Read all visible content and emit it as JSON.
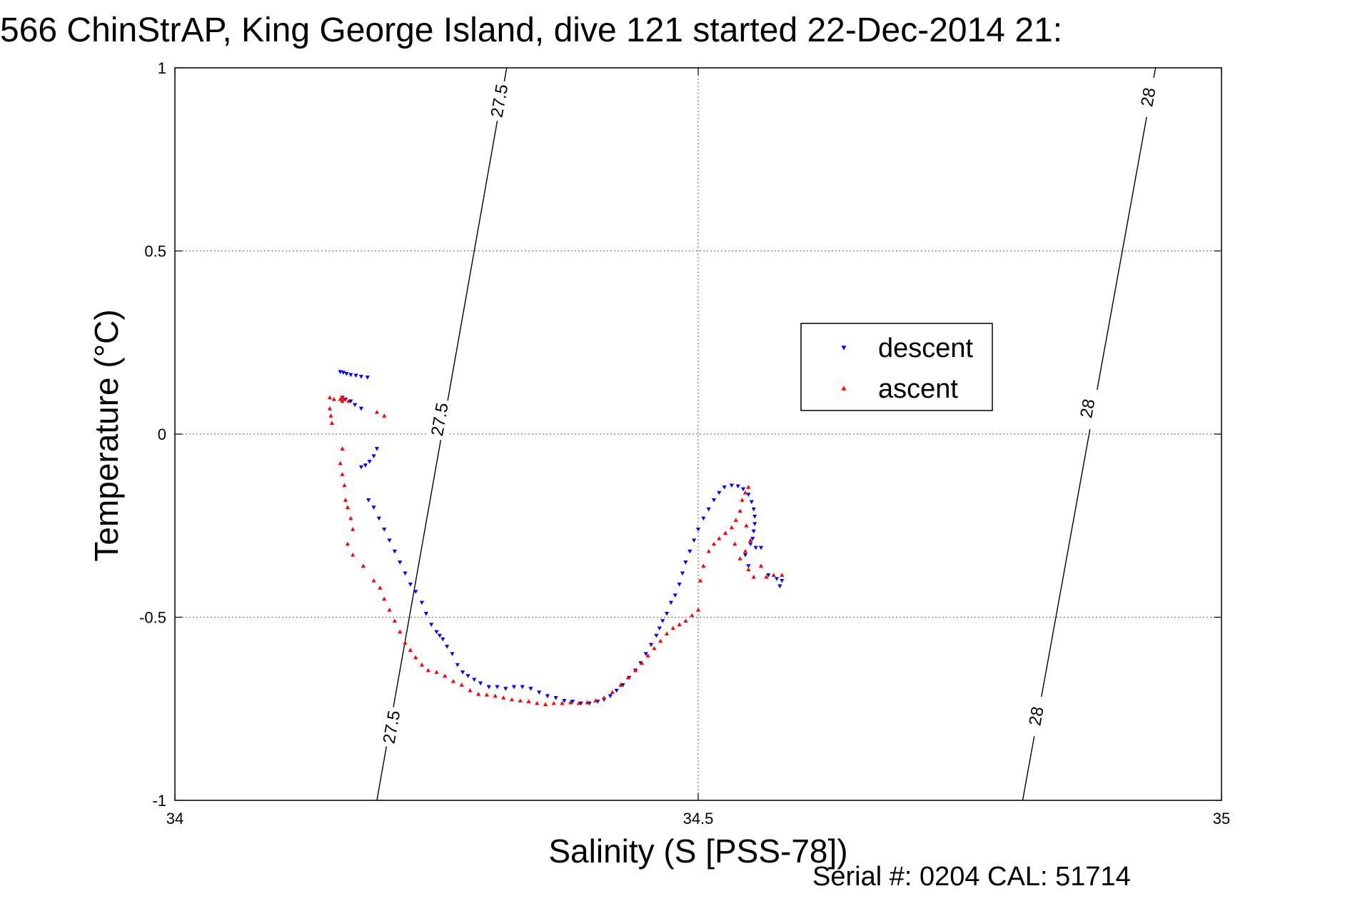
{
  "chart_data": {
    "type": "scatter",
    "title": "566 ChinStrAP, King George Island, dive 121 started 22-Dec-2014 21:",
    "xlabel": "Salinity (S [PSS-78])",
    "ylabel": "Temperature (°C)",
    "xlim": [
      34,
      35
    ],
    "ylim": [
      -1,
      1
    ],
    "x_ticks": [
      34,
      34.5,
      35
    ],
    "x_tick_labels": [
      "34",
      "34.5",
      "35"
    ],
    "y_ticks": [
      -1,
      -0.5,
      0,
      0.5,
      1
    ],
    "y_tick_labels": [
      "-1",
      "-0.5",
      "0",
      "0.5",
      "1"
    ],
    "grid": true,
    "legend_position": "upper-right",
    "footer": "Serial #: 0204  CAL: 51714",
    "isopycnals": [
      {
        "label": "27.5",
        "color": "#000000",
        "x": [
          34.193,
          34.317
        ],
        "y": [
          -1,
          1
        ],
        "label_points": [
          [
            34.207,
            -0.8
          ],
          [
            34.253,
            0.04
          ],
          [
            34.31,
            0.91
          ]
        ]
      },
      {
        "label": "28",
        "color": "#000000",
        "x": [
          34.81,
          34.937
        ],
        "y": [
          -1,
          1
        ],
        "label_points": [
          [
            34.823,
            -0.77
          ],
          [
            34.872,
            0.07
          ],
          [
            34.93,
            0.92
          ]
        ]
      }
    ],
    "series": [
      {
        "name": "descent",
        "marker": "triangle-down",
        "color": "#0000ff",
        "points": [
          [
            34.158,
            0.17
          ],
          [
            34.161,
            0.168
          ],
          [
            34.164,
            0.165
          ],
          [
            34.168,
            0.162
          ],
          [
            34.173,
            0.16
          ],
          [
            34.178,
            0.157
          ],
          [
            34.184,
            0.155
          ],
          [
            34.16,
            0.1
          ],
          [
            34.163,
            0.095
          ],
          [
            34.168,
            0.09
          ],
          [
            34.172,
            0.08
          ],
          [
            34.178,
            0.07
          ],
          [
            34.193,
            -0.04
          ],
          [
            34.19,
            -0.06
          ],
          [
            34.186,
            -0.075
          ],
          [
            34.182,
            -0.085
          ],
          [
            34.178,
            -0.09
          ],
          [
            34.185,
            -0.18
          ],
          [
            34.19,
            -0.2
          ],
          [
            34.195,
            -0.23
          ],
          [
            34.2,
            -0.26
          ],
          [
            34.205,
            -0.29
          ],
          [
            34.21,
            -0.32
          ],
          [
            34.215,
            -0.35
          ],
          [
            34.22,
            -0.38
          ],
          [
            34.225,
            -0.41
          ],
          [
            34.23,
            -0.43
          ],
          [
            34.236,
            -0.46
          ],
          [
            34.24,
            -0.49
          ],
          [
            34.245,
            -0.52
          ],
          [
            34.25,
            -0.54
          ],
          [
            34.253,
            -0.55
          ],
          [
            34.256,
            -0.56
          ],
          [
            34.26,
            -0.58
          ],
          [
            34.265,
            -0.6
          ],
          [
            34.27,
            -0.63
          ],
          [
            34.275,
            -0.65
          ],
          [
            34.28,
            -0.66
          ],
          [
            34.286,
            -0.67
          ],
          [
            34.292,
            -0.68
          ],
          [
            34.3,
            -0.69
          ],
          [
            34.308,
            -0.69
          ],
          [
            34.316,
            -0.695
          ],
          [
            34.324,
            -0.69
          ],
          [
            34.332,
            -0.69
          ],
          [
            34.34,
            -0.695
          ],
          [
            34.348,
            -0.705
          ],
          [
            34.356,
            -0.715
          ],
          [
            34.364,
            -0.72
          ],
          [
            34.372,
            -0.728
          ],
          [
            34.38,
            -0.73
          ],
          [
            34.388,
            -0.735
          ],
          [
            34.396,
            -0.735
          ],
          [
            34.404,
            -0.73
          ],
          [
            34.41,
            -0.725
          ],
          [
            34.416,
            -0.715
          ],
          [
            34.422,
            -0.7
          ],
          [
            34.428,
            -0.685
          ],
          [
            34.434,
            -0.665
          ],
          [
            34.44,
            -0.645
          ],
          [
            34.445,
            -0.625
          ],
          [
            34.45,
            -0.6
          ],
          [
            34.455,
            -0.575
          ],
          [
            34.46,
            -0.55
          ],
          [
            34.463,
            -0.53
          ],
          [
            34.466,
            -0.51
          ],
          [
            34.47,
            -0.49
          ],
          [
            34.474,
            -0.46
          ],
          [
            34.478,
            -0.44
          ],
          [
            34.482,
            -0.41
          ],
          [
            34.485,
            -0.38
          ],
          [
            34.488,
            -0.35
          ],
          [
            34.492,
            -0.32
          ],
          [
            34.496,
            -0.29
          ],
          [
            34.5,
            -0.26
          ],
          [
            34.505,
            -0.23
          ],
          [
            34.51,
            -0.205
          ],
          [
            34.515,
            -0.18
          ],
          [
            34.52,
            -0.16
          ],
          [
            34.525,
            -0.145
          ],
          [
            34.532,
            -0.14
          ],
          [
            34.538,
            -0.142
          ],
          [
            34.543,
            -0.15
          ],
          [
            34.548,
            -0.165
          ],
          [
            34.551,
            -0.185
          ],
          [
            34.553,
            -0.205
          ],
          [
            34.554,
            -0.225
          ],
          [
            34.554,
            -0.245
          ],
          [
            34.553,
            -0.265
          ],
          [
            34.552,
            -0.285
          ],
          [
            34.55,
            -0.3
          ],
          [
            34.555,
            -0.31
          ],
          [
            34.56,
            -0.31
          ],
          [
            34.545,
            -0.33
          ],
          [
            34.548,
            -0.36
          ],
          [
            34.567,
            -0.385
          ],
          [
            34.575,
            -0.395
          ],
          [
            34.578,
            -0.415
          ],
          [
            34.58,
            -0.4
          ]
        ]
      },
      {
        "name": "ascent",
        "marker": "triangle-up",
        "color": "#ff0000",
        "points": [
          [
            34.148,
            0.1
          ],
          [
            34.152,
            0.095
          ],
          [
            34.158,
            0.095
          ],
          [
            34.162,
            0.095
          ],
          [
            34.166,
            0.09
          ],
          [
            34.148,
            0.07
          ],
          [
            34.149,
            0.05
          ],
          [
            34.15,
            0.03
          ],
          [
            34.16,
            0.1
          ],
          [
            34.16,
            0.09
          ],
          [
            34.193,
            0.06
          ],
          [
            34.2,
            0.05
          ],
          [
            34.16,
            -0.04
          ],
          [
            34.158,
            -0.08
          ],
          [
            34.16,
            -0.11
          ],
          [
            34.162,
            -0.14
          ],
          [
            34.163,
            -0.18
          ],
          [
            34.165,
            -0.2
          ],
          [
            34.168,
            -0.23
          ],
          [
            34.17,
            -0.26
          ],
          [
            34.165,
            -0.3
          ],
          [
            34.17,
            -0.33
          ],
          [
            34.18,
            -0.36
          ],
          [
            34.19,
            -0.4
          ],
          [
            34.196,
            -0.42
          ],
          [
            34.2,
            -0.45
          ],
          [
            34.205,
            -0.48
          ],
          [
            34.21,
            -0.51
          ],
          [
            34.215,
            -0.54
          ],
          [
            34.22,
            -0.57
          ],
          [
            34.225,
            -0.59
          ],
          [
            34.23,
            -0.61
          ],
          [
            34.236,
            -0.63
          ],
          [
            34.242,
            -0.645
          ],
          [
            34.25,
            -0.65
          ],
          [
            34.258,
            -0.66
          ],
          [
            34.266,
            -0.675
          ],
          [
            34.274,
            -0.685
          ],
          [
            34.282,
            -0.7
          ],
          [
            34.29,
            -0.71
          ],
          [
            34.298,
            -0.712
          ],
          [
            34.306,
            -0.715
          ],
          [
            34.314,
            -0.72
          ],
          [
            34.322,
            -0.725
          ],
          [
            34.33,
            -0.728
          ],
          [
            34.338,
            -0.73
          ],
          [
            34.346,
            -0.735
          ],
          [
            34.354,
            -0.738
          ],
          [
            34.362,
            -0.735
          ],
          [
            34.37,
            -0.735
          ],
          [
            34.378,
            -0.733
          ],
          [
            34.386,
            -0.735
          ],
          [
            34.394,
            -0.733
          ],
          [
            34.402,
            -0.728
          ],
          [
            34.41,
            -0.72
          ],
          [
            34.418,
            -0.705
          ],
          [
            34.426,
            -0.685
          ],
          [
            34.433,
            -0.665
          ],
          [
            34.44,
            -0.645
          ],
          [
            34.446,
            -0.625
          ],
          [
            34.452,
            -0.605
          ],
          [
            34.458,
            -0.585
          ],
          [
            34.464,
            -0.565
          ],
          [
            34.47,
            -0.545
          ],
          [
            34.476,
            -0.53
          ],
          [
            34.482,
            -0.52
          ],
          [
            34.488,
            -0.51
          ],
          [
            34.494,
            -0.495
          ],
          [
            34.5,
            -0.48
          ],
          [
            34.502,
            -0.4
          ],
          [
            34.505,
            -0.36
          ],
          [
            34.51,
            -0.32
          ],
          [
            34.515,
            -0.3
          ],
          [
            34.52,
            -0.285
          ],
          [
            34.526,
            -0.27
          ],
          [
            34.532,
            -0.255
          ],
          [
            34.536,
            -0.235
          ],
          [
            34.54,
            -0.21
          ],
          [
            34.542,
            -0.18
          ],
          [
            34.545,
            -0.16
          ],
          [
            34.548,
            -0.145
          ],
          [
            34.546,
            -0.25
          ],
          [
            34.55,
            -0.29
          ],
          [
            34.545,
            -0.32
          ],
          [
            34.54,
            -0.34
          ],
          [
            34.548,
            -0.37
          ],
          [
            34.553,
            -0.39
          ],
          [
            34.56,
            -0.36
          ],
          [
            34.565,
            -0.39
          ],
          [
            34.572,
            -0.385
          ],
          [
            34.58,
            -0.385
          ],
          [
            34.535,
            -0.3
          ]
        ]
      }
    ]
  }
}
